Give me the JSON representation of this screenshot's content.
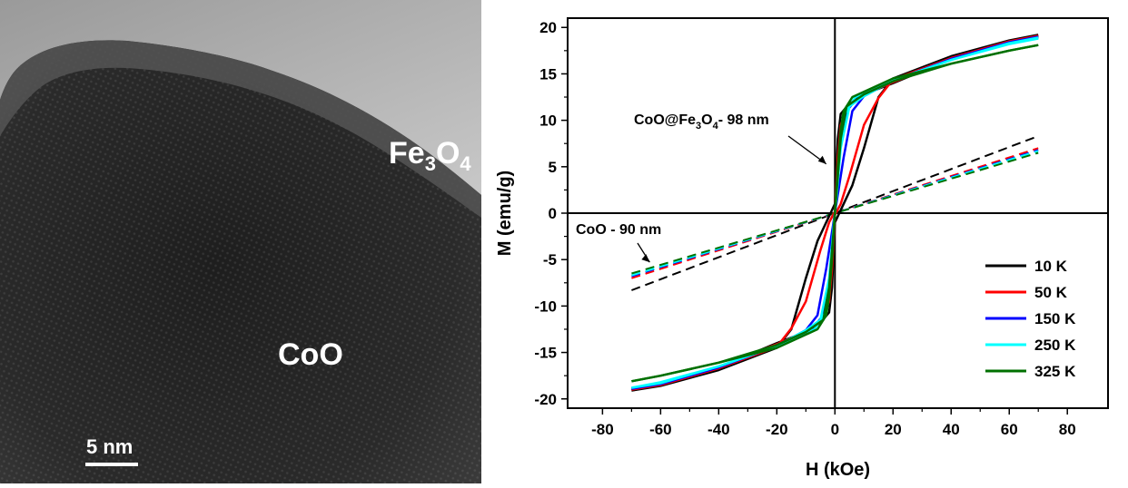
{
  "panel_left": {
    "label_shell": {
      "base": "Fe",
      "sub1": "3",
      "mid": "O",
      "sub2": "4"
    },
    "label_core": "CoO",
    "scale_bar_label": "5  nm"
  },
  "chart_data": {
    "type": "line",
    "title": "",
    "xlabel": "H (kOe)",
    "ylabel": "M (emu/g)",
    "xlim": [
      -92,
      94
    ],
    "ylim": [
      -21,
      21
    ],
    "x_ticks": [
      -80,
      -60,
      -40,
      -20,
      0,
      20,
      40,
      60,
      80
    ],
    "y_ticks": [
      -20,
      -15,
      -10,
      -5,
      0,
      5,
      10,
      15,
      20
    ],
    "grid": false,
    "legend_position": "bottom-right",
    "annotations": [
      {
        "text_parts": [
          "CoO@Fe",
          "3",
          "O",
          "4",
          "- 98 nm"
        ],
        "points_to": [
          -3,
          5.3
        ]
      },
      {
        "text": "CoO - 90 nm",
        "points_to": [
          -70,
          -4.8
        ]
      }
    ],
    "series": [
      {
        "name": "10 K",
        "color": "#000000",
        "descending": [
          [
            70,
            19.2
          ],
          [
            60,
            18.6
          ],
          [
            40,
            16.9
          ],
          [
            20,
            14.5
          ],
          [
            15,
            12.5
          ],
          [
            10,
            7
          ],
          [
            6,
            3
          ],
          [
            3,
            1
          ],
          [
            0,
            -1
          ],
          [
            -1,
            -8
          ],
          [
            -2,
            -10.7
          ],
          [
            -5,
            -11.8
          ],
          [
            -10,
            -12.8
          ],
          [
            -20,
            -14
          ],
          [
            -30,
            -15.3
          ],
          [
            -40,
            -16.8
          ],
          [
            -60,
            -18.4
          ],
          [
            -70,
            -19.1
          ]
        ],
        "ascending": [
          [
            -70,
            -19.1
          ],
          [
            -60,
            -18.6
          ],
          [
            -40,
            -16.9
          ],
          [
            -20,
            -14.5
          ],
          [
            -15,
            -12.5
          ],
          [
            -10,
            -7
          ],
          [
            -6,
            -3
          ],
          [
            -3,
            -1
          ],
          [
            0,
            1
          ],
          [
            1,
            8
          ],
          [
            2,
            10.7
          ],
          [
            5,
            11.8
          ],
          [
            10,
            12.8
          ],
          [
            20,
            14
          ],
          [
            30,
            15.3
          ],
          [
            40,
            16.8
          ],
          [
            60,
            18.4
          ],
          [
            70,
            19.1
          ]
        ],
        "dashed": [
          [
            -70,
            -8.3
          ],
          [
            70,
            8.3
          ]
        ]
      },
      {
        "name": "50 K",
        "color": "#ff0000",
        "descending": [
          [
            70,
            19.1
          ],
          [
            60,
            18.5
          ],
          [
            40,
            16.7
          ],
          [
            20,
            14.4
          ],
          [
            15,
            12.4
          ],
          [
            10,
            9.5
          ],
          [
            5,
            4
          ],
          [
            2,
            1
          ],
          [
            0,
            -0.2
          ],
          [
            -1,
            -6
          ],
          [
            -2,
            -9.5
          ],
          [
            -5,
            -11.8
          ],
          [
            -10,
            -12.8
          ],
          [
            -20,
            -14.1
          ],
          [
            -30,
            -15.3
          ],
          [
            -40,
            -16.7
          ],
          [
            -60,
            -18.3
          ],
          [
            -70,
            -19
          ]
        ],
        "ascending": [
          [
            -70,
            -19
          ],
          [
            -60,
            -18.5
          ],
          [
            -40,
            -16.7
          ],
          [
            -20,
            -14.4
          ],
          [
            -15,
            -12.4
          ],
          [
            -10,
            -9.5
          ],
          [
            -5,
            -4
          ],
          [
            -2,
            -1
          ],
          [
            0,
            0.2
          ],
          [
            1,
            6
          ],
          [
            2,
            9.5
          ],
          [
            5,
            11.8
          ],
          [
            10,
            12.8
          ],
          [
            20,
            14.1
          ],
          [
            30,
            15.3
          ],
          [
            40,
            16.7
          ],
          [
            60,
            18.3
          ],
          [
            70,
            19
          ]
        ],
        "dashed": [
          [
            -70,
            -7
          ],
          [
            70,
            7
          ]
        ]
      },
      {
        "name": "150 K",
        "color": "#0000ff",
        "descending": [
          [
            70,
            19
          ],
          [
            60,
            18.4
          ],
          [
            40,
            16.6
          ],
          [
            20,
            14.3
          ],
          [
            10,
            12.6
          ],
          [
            6,
            11
          ],
          [
            3,
            6
          ],
          [
            1,
            2
          ],
          [
            0,
            0
          ],
          [
            -1,
            -4
          ],
          [
            -2,
            -7.5
          ],
          [
            -4,
            -11
          ],
          [
            -8,
            -12.5
          ],
          [
            -20,
            -14.2
          ],
          [
            -40,
            -16.6
          ],
          [
            -60,
            -18.3
          ],
          [
            -70,
            -18.9
          ]
        ],
        "ascending": [
          [
            -70,
            -18.9
          ],
          [
            -60,
            -18.4
          ],
          [
            -40,
            -16.6
          ],
          [
            -20,
            -14.3
          ],
          [
            -10,
            -12.6
          ],
          [
            -6,
            -11
          ],
          [
            -3,
            -6
          ],
          [
            -1,
            -2
          ],
          [
            0,
            0
          ],
          [
            1,
            4
          ],
          [
            2,
            7.5
          ],
          [
            4,
            11
          ],
          [
            8,
            12.5
          ],
          [
            20,
            14.2
          ],
          [
            40,
            16.6
          ],
          [
            60,
            18.3
          ],
          [
            70,
            18.9
          ]
        ],
        "dashed": [
          [
            -70,
            -6.8
          ],
          [
            70,
            6.8
          ]
        ]
      },
      {
        "name": "250 K",
        "color": "#00ffff",
        "descending": [
          [
            70,
            18.9
          ],
          [
            60,
            18.3
          ],
          [
            40,
            16.5
          ],
          [
            20,
            14.3
          ],
          [
            10,
            12.6
          ],
          [
            5,
            11.5
          ],
          [
            2,
            7
          ],
          [
            0.5,
            1.5
          ],
          [
            0,
            0
          ],
          [
            -1,
            -4
          ],
          [
            -2,
            -8
          ],
          [
            -3,
            -10.5
          ],
          [
            -7,
            -12.5
          ],
          [
            -20,
            -14.3
          ],
          [
            -40,
            -16.5
          ],
          [
            -60,
            -18.2
          ],
          [
            -70,
            -18.8
          ]
        ],
        "ascending": [
          [
            -70,
            -18.8
          ],
          [
            -60,
            -18.3
          ],
          [
            -40,
            -16.5
          ],
          [
            -20,
            -14.3
          ],
          [
            -10,
            -12.6
          ],
          [
            -5,
            -11.5
          ],
          [
            -2,
            -7
          ],
          [
            -0.5,
            -1.5
          ],
          [
            0,
            0
          ],
          [
            1,
            4
          ],
          [
            2,
            8
          ],
          [
            3,
            10.5
          ],
          [
            7,
            12.5
          ],
          [
            20,
            14.3
          ],
          [
            40,
            16.5
          ],
          [
            60,
            18.2
          ],
          [
            70,
            18.8
          ]
        ],
        "dashed": [
          [
            -70,
            -6.7
          ],
          [
            70,
            6.7
          ]
        ]
      },
      {
        "name": "325 K",
        "color": "#007000",
        "descending": [
          [
            70,
            18.1
          ],
          [
            60,
            17.5
          ],
          [
            40,
            16.1
          ],
          [
            20,
            14.2
          ],
          [
            10,
            12.8
          ],
          [
            4,
            11.5
          ],
          [
            2,
            8
          ],
          [
            0.5,
            2
          ],
          [
            0,
            0
          ],
          [
            -1,
            -5
          ],
          [
            -2,
            -9
          ],
          [
            -3,
            -11
          ],
          [
            -6,
            -12.5
          ],
          [
            -20,
            -14.5
          ],
          [
            -40,
            -16.1
          ],
          [
            -60,
            -17.5
          ],
          [
            -70,
            -18.1
          ]
        ],
        "ascending": [
          [
            -70,
            -18.1
          ],
          [
            -60,
            -17.5
          ],
          [
            -40,
            -16.1
          ],
          [
            -20,
            -14.2
          ],
          [
            -10,
            -12.8
          ],
          [
            -4,
            -11.5
          ],
          [
            -2,
            -8
          ],
          [
            -0.5,
            -2
          ],
          [
            0,
            0
          ],
          [
            1,
            5
          ],
          [
            2,
            9
          ],
          [
            3,
            11
          ],
          [
            6,
            12.5
          ],
          [
            20,
            14.5
          ],
          [
            40,
            16.1
          ],
          [
            60,
            17.5
          ],
          [
            70,
            18.1
          ]
        ],
        "dashed": [
          [
            -70,
            -6.5
          ],
          [
            70,
            6.5
          ]
        ]
      }
    ]
  }
}
